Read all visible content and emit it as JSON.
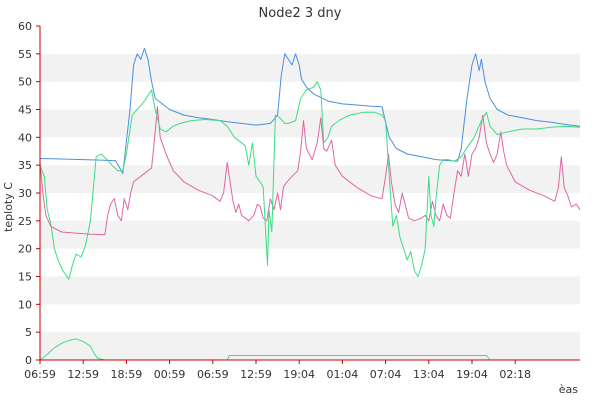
{
  "chart_data": {
    "type": "line",
    "title": "Node2 3 dny",
    "xlabel": "èas",
    "ylabel": "teploty C",
    "ylim": [
      0,
      60
    ],
    "yticks": [
      0,
      5,
      10,
      15,
      20,
      25,
      30,
      35,
      40,
      45,
      50,
      55,
      60
    ],
    "xlim": [
      0,
      75
    ],
    "xticks": [
      {
        "x": 0,
        "label": "06:59"
      },
      {
        "x": 6,
        "label": "12:59"
      },
      {
        "x": 12,
        "label": "18:59"
      },
      {
        "x": 18,
        "label": "00:59"
      },
      {
        "x": 24,
        "label": "06:59"
      },
      {
        "x": 30,
        "label": "12:59"
      },
      {
        "x": 36,
        "label": "19:04"
      },
      {
        "x": 42,
        "label": "01:04"
      },
      {
        "x": 48,
        "label": "07:04"
      },
      {
        "x": 54,
        "label": "13:04"
      },
      {
        "x": 60,
        "label": "19:04"
      },
      {
        "x": 66,
        "label": "02:18"
      }
    ],
    "grid": "horizontal bands",
    "series": [
      {
        "color": "#4a90d9",
        "points": [
          [
            0,
            36.2
          ],
          [
            3,
            36.1
          ],
          [
            6,
            36
          ],
          [
            9,
            35.9
          ],
          [
            10.5,
            35.8
          ],
          [
            11.5,
            33.5
          ],
          [
            12.5,
            45
          ],
          [
            13,
            53
          ],
          [
            13.5,
            55
          ],
          [
            14,
            54
          ],
          [
            14.5,
            56
          ],
          [
            15,
            54
          ],
          [
            15.5,
            50
          ],
          [
            16,
            47
          ],
          [
            18,
            45
          ],
          [
            20,
            44
          ],
          [
            22,
            43.5
          ],
          [
            24,
            43.2
          ],
          [
            26,
            42.8
          ],
          [
            28,
            42.5
          ],
          [
            30,
            42.2
          ],
          [
            32,
            42.5
          ],
          [
            33,
            44
          ],
          [
            33.5,
            51
          ],
          [
            34,
            55
          ],
          [
            34.5,
            54
          ],
          [
            35,
            53
          ],
          [
            35.5,
            55
          ],
          [
            36,
            53
          ],
          [
            36.3,
            50.5
          ],
          [
            37,
            49
          ],
          [
            38,
            47.8
          ],
          [
            40,
            46.5
          ],
          [
            42,
            46
          ],
          [
            44,
            45.8
          ],
          [
            46,
            45.6
          ],
          [
            47.5,
            45.5
          ],
          [
            48.5,
            40
          ],
          [
            49.5,
            38
          ],
          [
            51,
            37
          ],
          [
            53,
            36.5
          ],
          [
            55,
            36
          ],
          [
            57,
            35.8
          ],
          [
            58,
            35.7
          ],
          [
            58.5,
            38
          ],
          [
            59.3,
            47
          ],
          [
            60,
            53
          ],
          [
            60.5,
            55
          ],
          [
            61,
            52
          ],
          [
            61.3,
            54
          ],
          [
            61.8,
            50
          ],
          [
            62.5,
            47
          ],
          [
            63.5,
            45
          ],
          [
            65,
            44
          ],
          [
            67,
            43.5
          ],
          [
            69,
            43
          ],
          [
            71,
            42.7
          ],
          [
            73,
            42.3
          ],
          [
            75,
            42
          ]
        ]
      },
      {
        "color": "#e066a3",
        "points": [
          [
            0,
            35.5
          ],
          [
            0.4,
            30
          ],
          [
            0.8,
            26
          ],
          [
            1.5,
            24
          ],
          [
            3,
            23
          ],
          [
            5,
            22.8
          ],
          [
            7,
            22.6
          ],
          [
            9,
            22.5
          ],
          [
            9.4,
            26
          ],
          [
            9.8,
            28
          ],
          [
            10.3,
            29
          ],
          [
            10.8,
            26
          ],
          [
            11.3,
            25
          ],
          [
            11.7,
            29
          ],
          [
            12.2,
            27
          ],
          [
            12.6,
            30
          ],
          [
            13,
            32
          ],
          [
            14,
            33
          ],
          [
            15,
            34
          ],
          [
            15.5,
            34.5
          ],
          [
            16,
            41
          ],
          [
            16.3,
            45.5
          ],
          [
            16.7,
            40
          ],
          [
            17.5,
            37
          ],
          [
            18.5,
            34
          ],
          [
            20,
            32
          ],
          [
            22,
            30.5
          ],
          [
            24,
            29.5
          ],
          [
            25,
            28.5
          ],
          [
            25.5,
            30
          ],
          [
            26,
            35.5
          ],
          [
            26.4,
            32
          ],
          [
            26.8,
            28.5
          ],
          [
            27.2,
            26.5
          ],
          [
            27.6,
            28
          ],
          [
            28,
            26
          ],
          [
            29,
            25
          ],
          [
            29.7,
            26
          ],
          [
            30.2,
            28
          ],
          [
            30.6,
            27.5
          ],
          [
            31,
            25.5
          ],
          [
            31.5,
            25
          ],
          [
            32,
            29
          ],
          [
            32.5,
            27
          ],
          [
            33,
            30
          ],
          [
            33.4,
            27
          ],
          [
            33.8,
            31
          ],
          [
            34.3,
            32
          ],
          [
            35,
            33
          ],
          [
            35.8,
            34
          ],
          [
            36.2,
            37.5
          ],
          [
            36.6,
            43
          ],
          [
            37,
            38
          ],
          [
            37.8,
            36
          ],
          [
            38.5,
            39
          ],
          [
            39,
            43.5
          ],
          [
            39.4,
            38
          ],
          [
            39.8,
            37.5
          ],
          [
            40.5,
            39.5
          ],
          [
            41,
            35
          ],
          [
            42,
            33
          ],
          [
            44,
            31
          ],
          [
            46,
            29.5
          ],
          [
            47.5,
            29
          ],
          [
            48,
            33
          ],
          [
            48.4,
            37
          ],
          [
            48.8,
            32
          ],
          [
            49.3,
            28
          ],
          [
            49.8,
            26.5
          ],
          [
            50.3,
            30
          ],
          [
            50.8,
            27.5
          ],
          [
            51.2,
            25.5
          ],
          [
            52,
            25
          ],
          [
            53,
            25.5
          ],
          [
            53.5,
            26
          ],
          [
            54,
            25
          ],
          [
            54.5,
            28.5
          ],
          [
            55,
            26
          ],
          [
            55.5,
            25
          ],
          [
            56,
            28
          ],
          [
            56.5,
            26
          ],
          [
            57,
            25.5
          ],
          [
            57.5,
            30
          ],
          [
            58,
            34
          ],
          [
            58.5,
            33
          ],
          [
            59,
            37
          ],
          [
            59.5,
            33
          ],
          [
            60,
            37
          ],
          [
            60.5,
            38
          ],
          [
            61,
            40
          ],
          [
            61.5,
            44
          ],
          [
            62,
            39
          ],
          [
            62.5,
            37
          ],
          [
            63,
            35.5
          ],
          [
            63.5,
            37
          ],
          [
            64,
            41
          ],
          [
            64.4,
            37.5
          ],
          [
            64.8,
            35
          ],
          [
            66,
            32
          ],
          [
            68,
            30.5
          ],
          [
            70,
            29.5
          ],
          [
            71.5,
            28.5
          ],
          [
            72,
            31
          ],
          [
            72.4,
            36.5
          ],
          [
            72.8,
            31
          ],
          [
            73.3,
            29.5
          ],
          [
            73.8,
            27.5
          ],
          [
            74.5,
            28
          ],
          [
            75,
            27
          ]
        ]
      },
      {
        "color": "#3ddc84",
        "points": [
          [
            0,
            35
          ],
          [
            0.6,
            33
          ],
          [
            1,
            27
          ],
          [
            1.5,
            24.5
          ],
          [
            2,
            20
          ],
          [
            2.5,
            18
          ],
          [
            3.2,
            16
          ],
          [
            4,
            14.5
          ],
          [
            4.5,
            17
          ],
          [
            5,
            19
          ],
          [
            5.7,
            18.5
          ],
          [
            6.3,
            20.5
          ],
          [
            7,
            25
          ],
          [
            7.8,
            36.5
          ],
          [
            8.5,
            37
          ],
          [
            9.3,
            36
          ],
          [
            10,
            35
          ],
          [
            10.8,
            34
          ],
          [
            11.5,
            34
          ],
          [
            12,
            37
          ],
          [
            12.8,
            44
          ],
          [
            13.5,
            45
          ],
          [
            14.5,
            46.5
          ],
          [
            15.5,
            48.5
          ],
          [
            16,
            45
          ],
          [
            16.7,
            41.5
          ],
          [
            17.5,
            41
          ],
          [
            18.5,
            42
          ],
          [
            19.5,
            42.5
          ],
          [
            21,
            43
          ],
          [
            23,
            43.2
          ],
          [
            25,
            43
          ],
          [
            26,
            42
          ],
          [
            27,
            40
          ],
          [
            28.5,
            38.5
          ],
          [
            29,
            35
          ],
          [
            29.5,
            39
          ],
          [
            30,
            33
          ],
          [
            30.6,
            32
          ],
          [
            31,
            31
          ],
          [
            31.6,
            17
          ],
          [
            31.8,
            27
          ],
          [
            32.2,
            23
          ],
          [
            32.7,
            44
          ],
          [
            33.3,
            43.5
          ],
          [
            34,
            42.5
          ],
          [
            34.5,
            42.5
          ],
          [
            35.5,
            43
          ],
          [
            36.2,
            47
          ],
          [
            37,
            48.5
          ],
          [
            38,
            49
          ],
          [
            38.5,
            50
          ],
          [
            39,
            48.5
          ],
          [
            39.4,
            39
          ],
          [
            40,
            40
          ],
          [
            40.5,
            42
          ],
          [
            41.5,
            43
          ],
          [
            43,
            44
          ],
          [
            45,
            44.5
          ],
          [
            46.5,
            44.5
          ],
          [
            47.5,
            44
          ],
          [
            48,
            43
          ],
          [
            48.5,
            33
          ],
          [
            49,
            24
          ],
          [
            49.5,
            26
          ],
          [
            50,
            22
          ],
          [
            50.5,
            20
          ],
          [
            51,
            18
          ],
          [
            51.5,
            19.5
          ],
          [
            52,
            16
          ],
          [
            52.5,
            15
          ],
          [
            53,
            17
          ],
          [
            53.5,
            20
          ],
          [
            54,
            33
          ],
          [
            54.3,
            26
          ],
          [
            54.7,
            24
          ],
          [
            55,
            29
          ],
          [
            55.5,
            35
          ],
          [
            56,
            36
          ],
          [
            56.7,
            36
          ],
          [
            57.5,
            35.7
          ],
          [
            58.5,
            36.5
          ],
          [
            59.5,
            38.5
          ],
          [
            60.3,
            40
          ],
          [
            61.3,
            43
          ],
          [
            62,
            44.5
          ],
          [
            62.5,
            42
          ],
          [
            63.5,
            40.5
          ],
          [
            65,
            41
          ],
          [
            67,
            41.5
          ],
          [
            69,
            41.5
          ],
          [
            71,
            41.8
          ],
          [
            73,
            42
          ],
          [
            75,
            41.8
          ]
        ]
      },
      {
        "color": "#3ddc84",
        "points": [
          [
            0,
            0
          ],
          [
            1,
            1
          ],
          [
            2,
            2.2
          ],
          [
            3,
            3
          ],
          [
            4,
            3.5
          ],
          [
            5,
            3.8
          ],
          [
            6,
            3.3
          ],
          [
            7,
            2.5
          ],
          [
            7.5,
            1.2
          ],
          [
            8,
            0.3
          ],
          [
            9,
            0
          ],
          [
            24,
            0
          ],
          [
            26,
            0
          ],
          [
            26.3,
            0.8
          ],
          [
            40,
            0.8
          ],
          [
            50,
            0.8
          ],
          [
            62,
            0.8
          ],
          [
            62.5,
            0
          ],
          [
            75,
            0
          ]
        ]
      }
    ]
  }
}
